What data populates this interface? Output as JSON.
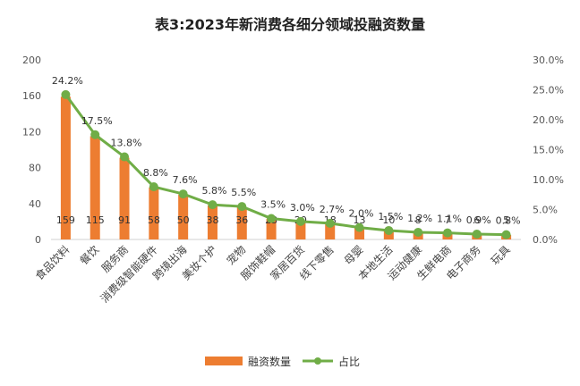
{
  "chart_data": {
    "type": "bar",
    "title": "表3:2023年新消费各细分领域投融资数量",
    "categories": [
      "食品饮料",
      "餐饮",
      "服务商",
      "消费级智能硬件",
      "跨境出海",
      "美妆个护",
      "宠物",
      "服饰鞋帽",
      "家居百货",
      "线下零售",
      "母婴",
      "本地生活",
      "运动健康",
      "生鲜电商",
      "电子商务",
      "玩具"
    ],
    "series": [
      {
        "name": "融资数量",
        "type": "bar",
        "axis": "left",
        "color": "#ED7D31",
        "values": [
          159,
          115,
          91,
          58,
          50,
          38,
          36,
          23,
          20,
          18,
          13,
          10,
          8,
          7,
          6,
          5
        ]
      },
      {
        "name": "占比",
        "type": "line",
        "axis": "right",
        "color": "#70AD47",
        "values": [
          24.2,
          17.5,
          13.8,
          8.8,
          7.6,
          5.8,
          5.5,
          3.5,
          3.0,
          2.7,
          2.0,
          1.5,
          1.2,
          1.1,
          0.9,
          0.8
        ],
        "labels": [
          "24.2%",
          "17.5%",
          "13.8%",
          "8.8%",
          "7.6%",
          "5.8%",
          "5.5%",
          "3.5%",
          "3.0%",
          "2.7%",
          "2.0%",
          "1.5%",
          "1.2%",
          "1.1%",
          "0.9%",
          "0.8%"
        ]
      }
    ],
    "ylim": [
      0,
      200
    ],
    "yticks": [
      "0",
      "40",
      "80",
      "120",
      "160",
      "200"
    ],
    "y2lim": [
      0,
      30
    ],
    "y2ticks": [
      "0.0%",
      "5.0%",
      "10.0%",
      "15.0%",
      "20.0%",
      "25.0%",
      "30.0%"
    ],
    "grid": false,
    "legend": "bottom"
  }
}
